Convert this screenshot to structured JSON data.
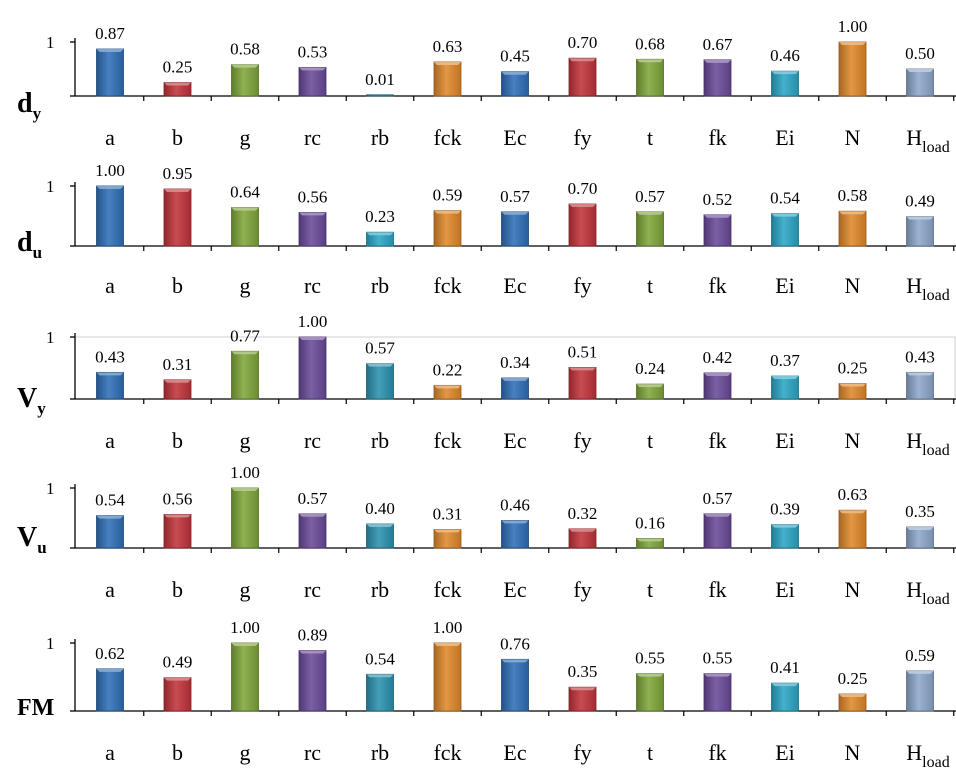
{
  "colors": {
    "a": "#2f6fb7",
    "b": "#c1343a",
    "g": "#7fa63a",
    "rc": "#6a4a9a",
    "rb": "#2a92b0",
    "fck": "#e0892a",
    "Ec": "#2f6fb7",
    "fy": "#c1343a",
    "t": "#7fa63a",
    "fk": "#6a4a9a",
    "Ei": "#2ba6c6",
    "N": "#e0892a",
    "H": "#8da7cb"
  },
  "chart_data": [
    {
      "type": "bar",
      "label": "d",
      "label_sub": "y",
      "categories": [
        "a",
        "b",
        "g",
        "rc",
        "rb",
        "fck",
        "Ec",
        "fy",
        "t",
        "fk",
        "Ei",
        "N",
        "H"
      ],
      "category_sub": [
        "",
        "",
        "",
        "",
        "",
        "",
        "",
        "",
        "",
        "",
        "",
        "",
        "load"
      ],
      "values": [
        0.87,
        0.25,
        0.58,
        0.53,
        0.01,
        0.63,
        0.45,
        0.7,
        0.68,
        0.67,
        0.46,
        1.0,
        0.5
      ],
      "value_labels": [
        "0.87",
        "0.25",
        "0.58",
        "0.53",
        "0.01",
        "0.63",
        "0.45",
        "0.70",
        "0.68",
        "0.67",
        "0.46",
        "1.00",
        "0.50"
      ],
      "colors": [
        "a",
        "b",
        "g",
        "rc",
        "rb",
        "fck",
        "Ec",
        "fy",
        "t",
        "fk",
        "Ei",
        "N",
        "H"
      ],
      "ylim": [
        0,
        1
      ],
      "yticks": [
        "1"
      ],
      "grid": false
    },
    {
      "type": "bar",
      "label": "d",
      "label_sub": "u",
      "categories": [
        "a",
        "b",
        "g",
        "rc",
        "rb",
        "fck",
        "Ec",
        "fy",
        "t",
        "fk",
        "Ei",
        "N",
        "H"
      ],
      "category_sub": [
        "",
        "",
        "",
        "",
        "",
        "",
        "",
        "",
        "",
        "",
        "",
        "",
        "load"
      ],
      "values": [
        1.0,
        0.95,
        0.64,
        0.56,
        0.23,
        0.59,
        0.57,
        0.7,
        0.57,
        0.52,
        0.54,
        0.58,
        0.49
      ],
      "value_labels": [
        "1.00",
        "0.95",
        "0.64",
        "0.56",
        "0.23",
        "0.59",
        "0.57",
        "0.70",
        "0.57",
        "0.52",
        "0.54",
        "0.58",
        "0.49"
      ],
      "colors": [
        "a",
        "b",
        "g",
        "rc",
        "Ei",
        "fck",
        "Ec",
        "fy",
        "t",
        "fk",
        "Ei",
        "N",
        "H"
      ],
      "ylim": [
        0,
        1
      ],
      "yticks": [
        "1"
      ],
      "grid": false
    },
    {
      "type": "bar",
      "label": "V",
      "label_sub": "y",
      "categories": [
        "a",
        "b",
        "g",
        "rc",
        "rb",
        "fck",
        "Ec",
        "fy",
        "t",
        "fk",
        "Ei",
        "N",
        "H"
      ],
      "category_sub": [
        "",
        "",
        "",
        "",
        "",
        "",
        "",
        "",
        "",
        "",
        "",
        "",
        "load"
      ],
      "values": [
        0.43,
        0.31,
        0.77,
        1.0,
        0.57,
        0.22,
        0.34,
        0.51,
        0.24,
        0.42,
        0.37,
        0.25,
        0.43
      ],
      "value_labels": [
        "0.43",
        "0.31",
        "0.77",
        "1.00",
        "0.57",
        "0.22",
        "0.34",
        "0.51",
        "0.24",
        "0.42",
        "0.37",
        "0.25",
        "0.43"
      ],
      "colors": [
        "a",
        "b",
        "g",
        "rc",
        "rb",
        "fck",
        "Ec",
        "fy",
        "t",
        "fk",
        "Ei",
        "N",
        "H"
      ],
      "ylim": [
        0,
        1
      ],
      "yticks": [
        "1"
      ],
      "grid": true
    },
    {
      "type": "bar",
      "label": "V",
      "label_sub": "u",
      "categories": [
        "a",
        "b",
        "g",
        "rc",
        "rb",
        "fck",
        "Ec",
        "fy",
        "t",
        "fk",
        "Ei",
        "N",
        "H"
      ],
      "category_sub": [
        "",
        "",
        "",
        "",
        "",
        "",
        "",
        "",
        "",
        "",
        "",
        "",
        "load"
      ],
      "values": [
        0.54,
        0.56,
        1.0,
        0.57,
        0.4,
        0.31,
        0.46,
        0.32,
        0.16,
        0.57,
        0.39,
        0.63,
        0.35
      ],
      "value_labels": [
        "0.54",
        "0.56",
        "1.00",
        "0.57",
        "0.40",
        "0.31",
        "0.46",
        "0.32",
        "0.16",
        "0.57",
        "0.39",
        "0.63",
        "0.35"
      ],
      "colors": [
        "a",
        "b",
        "g",
        "rc",
        "rb",
        "fck",
        "Ec",
        "fy",
        "t",
        "fk",
        "Ei",
        "N",
        "H"
      ],
      "ylim": [
        0,
        1
      ],
      "yticks": [
        "1"
      ],
      "grid": false
    },
    {
      "type": "bar",
      "label": "FM",
      "label_sub": "",
      "categories": [
        "a",
        "b",
        "g",
        "rc",
        "rb",
        "fck",
        "Ec",
        "fy",
        "t",
        "fk",
        "Ei",
        "N",
        "H"
      ],
      "category_sub": [
        "",
        "",
        "",
        "",
        "",
        "",
        "",
        "",
        "",
        "",
        "",
        "",
        "load"
      ],
      "values": [
        0.62,
        0.49,
        1.0,
        0.89,
        0.54,
        1.0,
        0.76,
        0.35,
        0.55,
        0.55,
        0.41,
        0.25,
        0.59
      ],
      "value_labels": [
        "0.62",
        "0.49",
        "1.00",
        "0.89",
        "0.54",
        "1.00",
        "0.76",
        "0.35",
        "0.55",
        "0.55",
        "0.41",
        "0.25",
        "0.59"
      ],
      "colors": [
        "a",
        "b",
        "g",
        "rc",
        "rb",
        "fck",
        "Ec",
        "fy",
        "t",
        "fk",
        "Ei",
        "N",
        "H"
      ],
      "ylim": [
        0,
        1
      ],
      "yticks": [
        "1"
      ],
      "grid": false
    }
  ]
}
